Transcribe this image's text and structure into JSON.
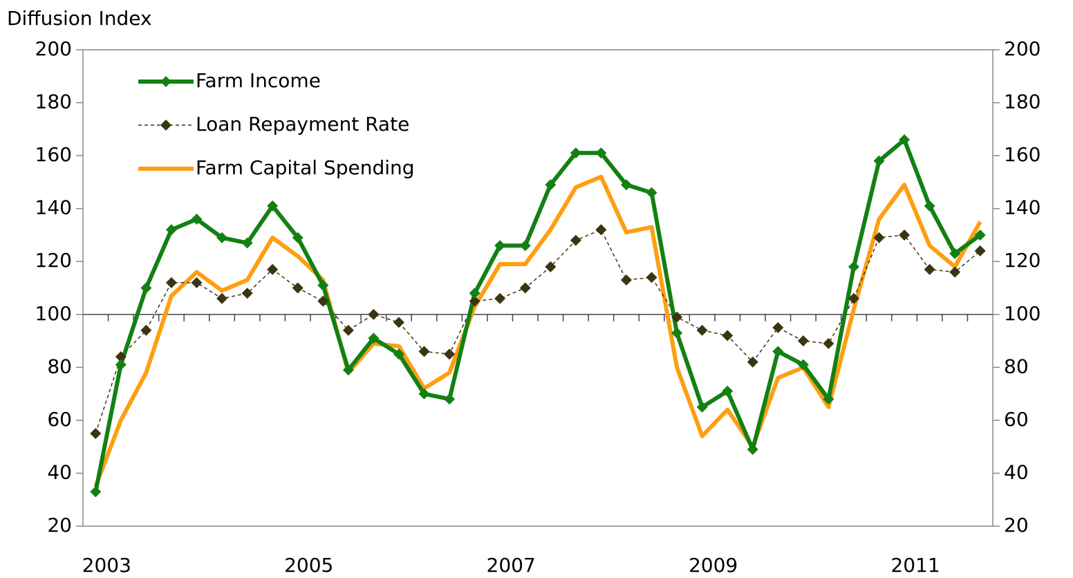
{
  "chart_data": {
    "type": "line",
    "ylabel": "Diffusion Index",
    "categories": [
      "2003",
      null,
      null,
      null,
      null,
      null,
      null,
      null,
      "2005",
      null,
      null,
      null,
      null,
      null,
      null,
      null,
      "2007",
      null,
      null,
      null,
      null,
      null,
      null,
      null,
      "2009",
      null,
      null,
      null,
      null,
      null,
      null,
      null,
      "2011",
      null,
      null,
      null
    ],
    "series": [
      {
        "name": "Farm Income",
        "color": "#138013",
        "marker": "diamond",
        "dash": false,
        "width": 6,
        "values": [
          33,
          81,
          110,
          132,
          136,
          129,
          127,
          141,
          129,
          111,
          79,
          91,
          85,
          70,
          68,
          108,
          126,
          126,
          149,
          161,
          161,
          149,
          146,
          93,
          65,
          71,
          49,
          86,
          81,
          68,
          118,
          158,
          166,
          141,
          123,
          130
        ]
      },
      {
        "name": "Loan Repayment Rate",
        "color": "#3b3510",
        "marker": "diamond",
        "dash": true,
        "width": 1.5,
        "values": [
          55,
          84,
          94,
          112,
          112,
          106,
          108,
          117,
          110,
          105,
          94,
          100,
          97,
          86,
          85,
          105,
          106,
          110,
          118,
          128,
          132,
          113,
          114,
          99,
          94,
          92,
          82,
          95,
          90,
          89,
          106,
          129,
          130,
          117,
          116,
          124
        ]
      },
      {
        "name": "Farm Capital Spending",
        "color": "#ff9e10",
        "marker": null,
        "dash": false,
        "width": 6,
        "values": [
          35,
          60,
          78,
          107,
          116,
          109,
          113,
          129,
          122,
          113,
          78,
          89,
          88,
          72,
          78,
          103,
          119,
          119,
          132,
          148,
          152,
          131,
          133,
          80,
          54,
          64,
          50,
          76,
          80,
          65,
          102,
          136,
          149,
          126,
          118,
          135
        ]
      }
    ],
    "ylim": [
      20,
      200
    ],
    "yticks": [
      20,
      40,
      60,
      80,
      100,
      120,
      140,
      160,
      180,
      200
    ],
    "y2lim": [
      20,
      200
    ],
    "y2ticks": [
      20,
      40,
      60,
      80,
      100,
      120,
      140,
      160,
      180,
      200
    ],
    "xaxis_at": 100,
    "grid": false,
    "legend": "upper left"
  }
}
